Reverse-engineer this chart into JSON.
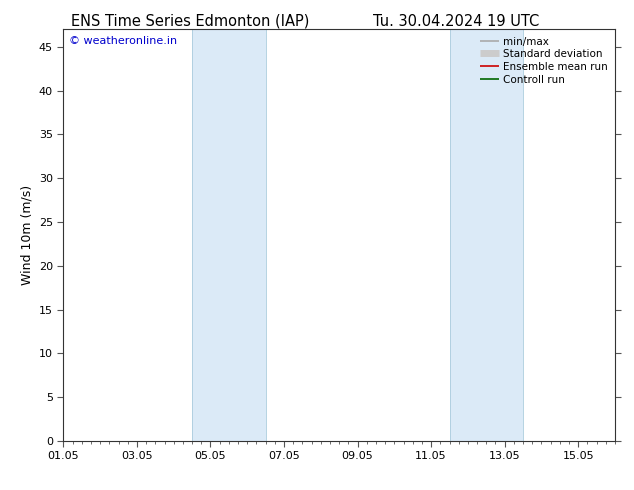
{
  "title_left": "ENS Time Series Edmonton (IAP)",
  "title_right": "Tu. 30.04.2024 19 UTC",
  "ylabel": "Wind 10m (m/s)",
  "xlabel_ticks": [
    "01.05",
    "03.05",
    "05.05",
    "07.05",
    "09.05",
    "11.05",
    "13.05",
    "15.05"
  ],
  "x_tick_positions": [
    0,
    2,
    4,
    6,
    8,
    10,
    12,
    14
  ],
  "xlim": [
    0,
    15
  ],
  "ylim": [
    0,
    47
  ],
  "yticks": [
    0,
    5,
    10,
    15,
    20,
    25,
    30,
    35,
    40,
    45
  ],
  "shaded_bands": [
    {
      "xmin": 3.5,
      "xmax": 5.5
    },
    {
      "xmin": 10.5,
      "xmax": 12.5
    }
  ],
  "shade_color": "#dbeaf7",
  "shade_edge_color": "#aaccdd",
  "bg_color": "#ffffff",
  "watermark_text": "© weatheronline.in",
  "watermark_color": "#0000cc",
  "legend_entries": [
    {
      "label": "min/max",
      "color": "#aaaaaa",
      "lw": 1.2,
      "ls": "-"
    },
    {
      "label": "Standard deviation",
      "color": "#cccccc",
      "lw": 5,
      "ls": "-"
    },
    {
      "label": "Ensemble mean run",
      "color": "#cc0000",
      "lw": 1.2,
      "ls": "-"
    },
    {
      "label": "Controll run",
      "color": "#006600",
      "lw": 1.2,
      "ls": "-"
    }
  ],
  "title_fontsize": 10.5,
  "ylabel_fontsize": 9,
  "tick_fontsize": 8,
  "watermark_fontsize": 8,
  "legend_fontsize": 7.5
}
